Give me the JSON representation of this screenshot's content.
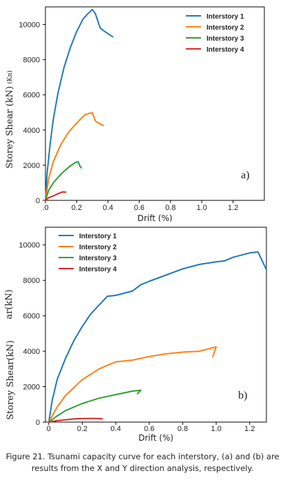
{
  "chart_data": [
    {
      "type": "line",
      "panel_label": "a)",
      "xlabel": "Drift (%)",
      "ylabel": "Storey Shear (kN)",
      "ylabel_extra": "(Kn)",
      "xlim": [
        0,
        1.4
      ],
      "ylim": [
        0,
        11000
      ],
      "x_ticks": [
        0,
        0.2,
        0.4,
        0.6,
        0.8,
        1.0,
        1.2
      ],
      "x_tick_labels": [
        ".0",
        "0.2",
        "0.4",
        "0.6",
        "0.8",
        "1.0",
        "1.2"
      ],
      "y_ticks": [
        0,
        2000,
        4000,
        6000,
        8000,
        10000
      ],
      "y_tick_labels": [
        "0",
        "2000",
        "4000",
        "6000",
        "8000",
        "10000"
      ],
      "legend_position": "top-right",
      "series": [
        {
          "name": "Interstory 1",
          "color": "#1f77b4",
          "x": [
            0,
            0.01,
            0.03,
            0.05,
            0.08,
            0.12,
            0.16,
            0.2,
            0.24,
            0.27,
            0.3,
            0.32,
            0.35,
            0.38,
            0.43
          ],
          "y": [
            0,
            1500,
            3200,
            4600,
            6100,
            7600,
            8700,
            9600,
            10300,
            10600,
            10850,
            10600,
            9800,
            9600,
            9300
          ]
        },
        {
          "name": "Interstory 2",
          "color": "#ff7f0e",
          "x": [
            0,
            0.02,
            0.05,
            0.1,
            0.15,
            0.2,
            0.25,
            0.28,
            0.3,
            0.32,
            0.35,
            0.37
          ],
          "y": [
            0,
            1200,
            2200,
            3200,
            3900,
            4400,
            4850,
            4950,
            4980,
            4500,
            4350,
            4250
          ]
        },
        {
          "name": "Interstory 3",
          "color": "#2ca02c",
          "x": [
            0,
            0.02,
            0.05,
            0.1,
            0.15,
            0.19,
            0.21,
            0.22,
            0.23
          ],
          "y": [
            0,
            550,
            1000,
            1500,
            1900,
            2150,
            2200,
            1950,
            1850
          ]
        },
        {
          "name": "Interstory 4",
          "color": "#d62728",
          "x": [
            0,
            0.02,
            0.05,
            0.08,
            0.11,
            0.13
          ],
          "y": [
            0,
            150,
            250,
            380,
            480,
            470
          ]
        }
      ]
    },
    {
      "type": "line",
      "panel_label": "b)",
      "xlabel": "Drift (%)",
      "ylabel": "Storey Shear(kN)",
      "ylabel_extra": "ar(kN)",
      "xlim": [
        -0.02,
        1.3
      ],
      "ylim": [
        0,
        11000
      ],
      "x_ticks": [
        0,
        0.2,
        0.4,
        0.6,
        0.8,
        1.0,
        1.2
      ],
      "x_tick_labels": [
        "0",
        "0.2",
        "0.4",
        "0.6",
        "0.8",
        "1.0",
        "1.2"
      ],
      "y_ticks": [
        0,
        2000,
        4000,
        6000,
        8000,
        10000
      ],
      "y_tick_labels": [
        "0",
        "2000",
        "4000",
        "6000",
        "8000",
        "10000"
      ],
      "legend_position": "top-left",
      "series": [
        {
          "name": "Interstory 1",
          "color": "#1f77b4",
          "x": [
            0,
            0.02,
            0.05,
            0.1,
            0.15,
            0.2,
            0.25,
            0.3,
            0.35,
            0.4,
            0.5,
            0.55,
            0.6,
            0.7,
            0.8,
            0.9,
            1.0,
            1.05,
            1.1,
            1.2,
            1.25,
            1.27,
            1.3
          ],
          "y": [
            0,
            1200,
            2400,
            3600,
            4600,
            5400,
            6100,
            6600,
            7100,
            7150,
            7400,
            7750,
            7950,
            8300,
            8650,
            8900,
            9050,
            9100,
            9300,
            9550,
            9600,
            9200,
            8600
          ]
        },
        {
          "name": "Interstory 2",
          "color": "#ff7f0e",
          "x": [
            0,
            0.05,
            0.1,
            0.2,
            0.3,
            0.4,
            0.45,
            0.5,
            0.6,
            0.7,
            0.8,
            0.9,
            1.0,
            0.98
          ],
          "y": [
            0,
            850,
            1500,
            2400,
            3000,
            3400,
            3450,
            3500,
            3700,
            3850,
            3950,
            4000,
            4250,
            3700
          ]
        },
        {
          "name": "Interstory 3",
          "color": "#2ca02c",
          "x": [
            0,
            0.05,
            0.1,
            0.2,
            0.3,
            0.4,
            0.5,
            0.55,
            0.53
          ],
          "y": [
            0,
            350,
            650,
            1050,
            1350,
            1550,
            1750,
            1800,
            1600
          ]
        },
        {
          "name": "Interstory 4",
          "color": "#d62728",
          "x": [
            0,
            0.05,
            0.1,
            0.15,
            0.2,
            0.25,
            0.3,
            0.32
          ],
          "y": [
            0,
            80,
            130,
            180,
            200,
            210,
            200,
            180
          ]
        }
      ]
    }
  ],
  "caption": {
    "line1": "Figure 21. Tsunami capacity curve for each interstory, (a) and (b) are",
    "line2": "results from the X and Y direction analysis, respectively."
  }
}
